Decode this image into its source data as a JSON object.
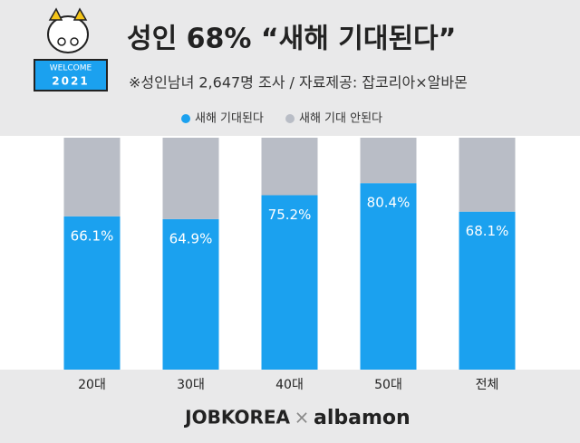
{
  "badge": {
    "line1": "WELCOME",
    "line2": "2021"
  },
  "footer": {
    "left": "JOBKOREA",
    "separator": "×",
    "right": "albamon"
  },
  "chart_data": {
    "type": "bar",
    "stacked": true,
    "title": "성인 68% “새해 기대된다”",
    "subtitle": "※성인남녀 2,647명 조사 / 자료제공: 잡코리아×알바몬",
    "categories": [
      "20대",
      "30대",
      "40대",
      "50대",
      "전체"
    ],
    "ylim": [
      0,
      100
    ],
    "series": [
      {
        "name": "새해 기대된다",
        "color": "#1ba1ef",
        "values": [
          66.1,
          64.9,
          75.2,
          80.4,
          68.1
        ],
        "value_labels": [
          "66.1%",
          "64.9%",
          "75.2%",
          "80.4%",
          "68.1%"
        ]
      },
      {
        "name": "새해 기대 안된다",
        "color": "#b9bdc6",
        "values": [
          33.9,
          35.1,
          24.8,
          19.6,
          31.9
        ]
      }
    ]
  }
}
